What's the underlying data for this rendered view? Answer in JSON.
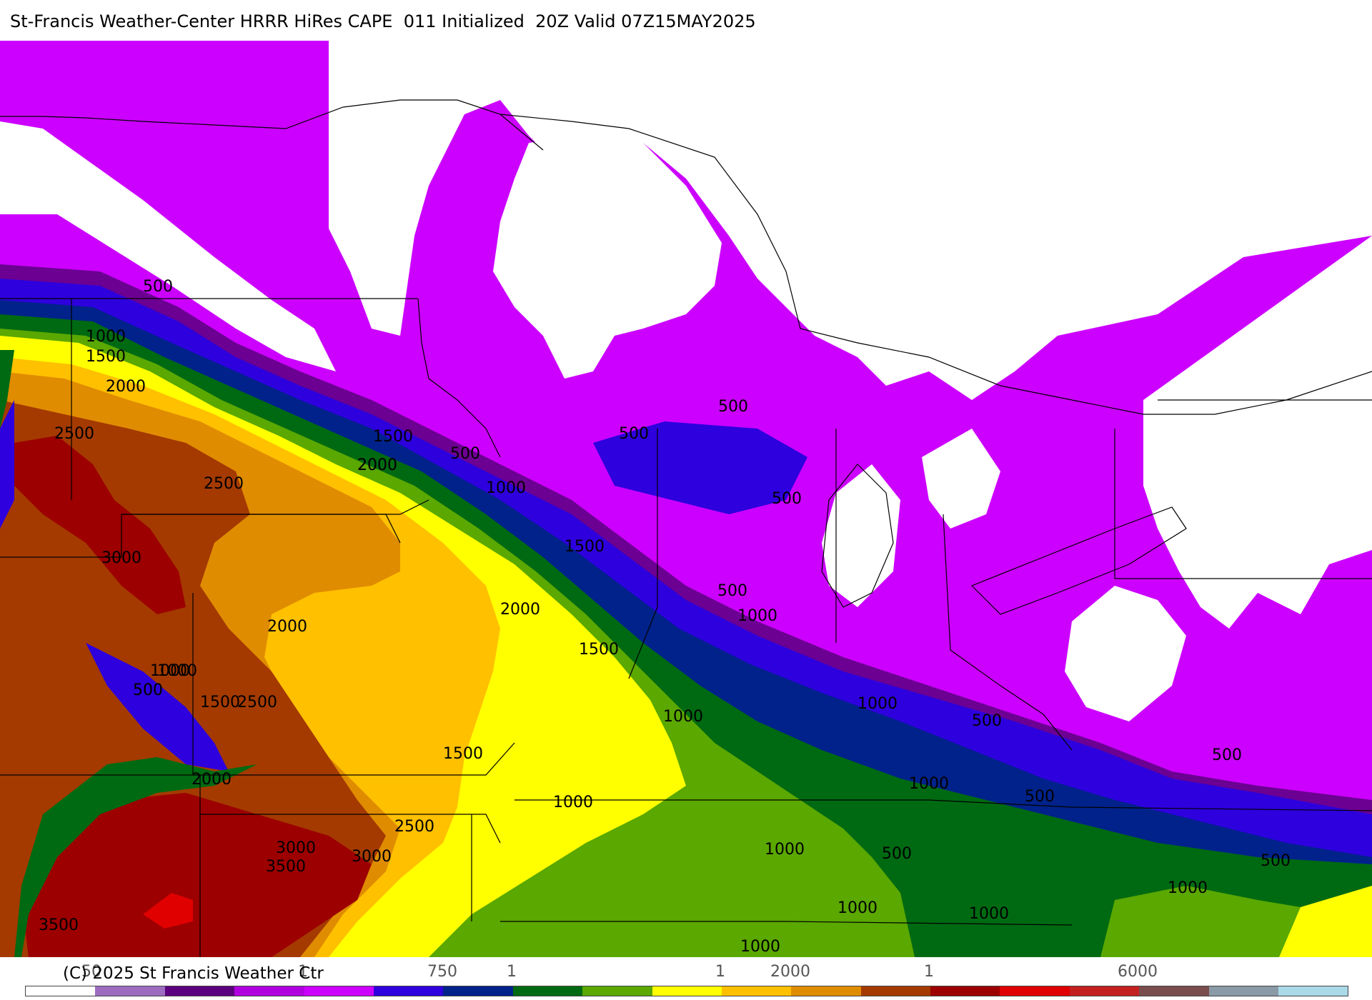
{
  "header": {
    "title": "St-Francis Weather-Center HRRR HiRes CAPE  011 Initialized  20Z Valid 07Z15MAY2025"
  },
  "map": {
    "field": "CAPE",
    "fill_colors": {
      "none": "#ffffff",
      "c_100": "#9d6cc0",
      "c_250": "#5b007f",
      "c_400": "#b100e0",
      "c_500": "#cc00ff",
      "c_600": "#2e00dd",
      "c_750": "#00228a",
      "c_1000": "#006a12",
      "c_1250": "#5aa800",
      "c_1500": "#ffff00",
      "c_2000": "#ffc000",
      "c_2250": "#e08c00",
      "c_2500": "#a43a00",
      "c_3000": "#9c0000",
      "c_3500": "#e00000",
      "border": "#000000"
    },
    "contour_labels": [
      "500",
      "1000",
      "1500",
      "2000",
      "2500",
      "2000",
      "1500",
      "500",
      "2000",
      "2500",
      "1000",
      "3000",
      "1500",
      "500",
      "2000",
      "1000",
      "500",
      "500",
      "500",
      "500",
      "1000",
      "1500",
      "1000",
      "500",
      "1500",
      "2500",
      "2000",
      "1500",
      "2000",
      "1000",
      "1000",
      "1000",
      "500",
      "2500",
      "3000",
      "3500",
      "3000",
      "1000",
      "500",
      "500",
      "500",
      "1000",
      "1000",
      "1000",
      "1000",
      "3500",
      "1000",
      "500"
    ]
  },
  "footer": {
    "copyright": "(C) 2025 St Francis Weather Ctr",
    "tick_labels": [
      "50",
      "1",
      "750",
      "1",
      "1",
      "2000",
      "1",
      "6000"
    ]
  },
  "colorbar": {
    "colors": [
      "#ffffff",
      "#9d6cc0",
      "#5b007f",
      "#b100e0",
      "#cc00ff",
      "#2e00dd",
      "#00228a",
      "#006a12",
      "#5aa800",
      "#ffff00",
      "#ffc000",
      "#e08c00",
      "#a43a00",
      "#9c0000",
      "#e00000",
      "#c42020",
      "#7a4d4d",
      "#8a9aa6",
      "#a9d8e6"
    ]
  }
}
